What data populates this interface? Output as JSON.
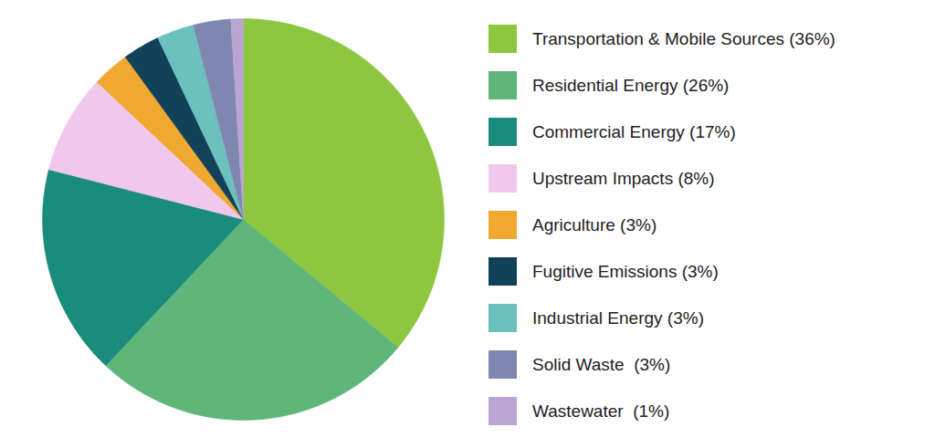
{
  "chart_data": {
    "type": "pie",
    "categories": [
      "Transportation & Mobile Sources (36%)",
      "Residential Energy (26%)",
      "Commercial Energy (17%)",
      "Upstream Impacts (8%)",
      "Agriculture (3%)",
      "Fugitive Emissions (3%)",
      "Industrial Energy (3%)",
      "Solid Waste  (3%)",
      "Wastewater  (1%)"
    ],
    "values": [
      36,
      26,
      17,
      8,
      3,
      3,
      3,
      3,
      1
    ],
    "colors": [
      "#8dc63f",
      "#5fb67a",
      "#1a8c7c",
      "#f0c8ec",
      "#f0a830",
      "#12415a",
      "#6cc0bd",
      "#7f86b0",
      "#b9a4d2"
    ],
    "legend": "right"
  }
}
